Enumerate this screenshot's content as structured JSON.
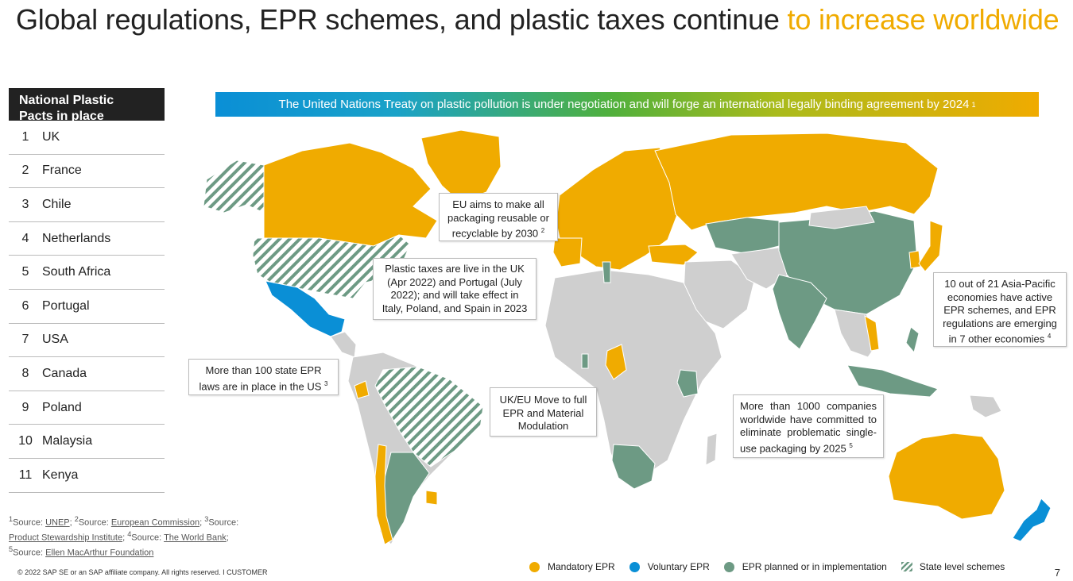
{
  "title": {
    "main": "Global regulations, EPR schemes, and plastic taxes continue ",
    "highlight": "to increase worldwide"
  },
  "pacts": {
    "header_line1": "National Plastic",
    "header_line2": "Pacts in place",
    "rows": [
      {
        "num": "1",
        "name": "UK"
      },
      {
        "num": "2",
        "name": "France"
      },
      {
        "num": "3",
        "name": "Chile"
      },
      {
        "num": "4",
        "name": "Netherlands"
      },
      {
        "num": "5",
        "name": "South Africa"
      },
      {
        "num": "6",
        "name": "Portugal"
      },
      {
        "num": "7",
        "name": "USA"
      },
      {
        "num": "8",
        "name": "Canada"
      },
      {
        "num": "9",
        "name": "Poland"
      },
      {
        "num": "10",
        "name": "Malaysia"
      },
      {
        "num": "11",
        "name": "Kenya"
      }
    ]
  },
  "banner": {
    "text": "The United Nations Treaty on plastic pollution is under negotiation and will forge an international legally binding agreement by 2024",
    "sup": "1"
  },
  "callouts": {
    "eu": {
      "text": "EU aims to make all packaging reusable or recyclable by 2030",
      "sup": "2"
    },
    "tax": {
      "text": "Plastic taxes are live in the UK (Apr 2022) and Portugal (July 2022); and will take effect in Italy, Poland, and Spain in 2023"
    },
    "us": {
      "text": "More than 100 state EPR laws are in place in the US",
      "sup": "3"
    },
    "ukeu": {
      "text": "UK/EU Move to full EPR and Material Modulation"
    },
    "companies": {
      "text": "More than 1000 companies worldwide have committed to eliminate problematic single-use packaging by 2025",
      "sup": "5"
    },
    "apac": {
      "text": "10 out of 21 Asia-Pacific economies have active EPR schemes, and EPR regulations are emerging in 7 other economies",
      "sup": "4"
    }
  },
  "sources": {
    "s1_sup": "1",
    "s1_label": "Source: ",
    "s1_link": "UNEP",
    "s2_sup": "2",
    "s2_label": "Source: ",
    "s2_link": "European Commission",
    "s3_sup": "3",
    "s3_label": "Source: ",
    "s3_link": "Product Stewardship Institute",
    "s4_sup": "4",
    "s4_label": "Source: ",
    "s4_link": "The World Bank",
    "s5_sup": "5",
    "s5_label": "Source: ",
    "s5_link": "Ellen MacArthur Foundation"
  },
  "legend": {
    "mandatory": "Mandatory EPR",
    "voluntary": "Voluntary EPR",
    "planned": "EPR planned or in implementation",
    "state": "State level schemes"
  },
  "footer": {
    "copyright": "© 2022 SAP SE or an SAP affiliate company. All rights reserved.  I   CUSTOMER",
    "page": "7"
  },
  "colors": {
    "mandatory": "#f0ab00",
    "voluntary": "#0a8fd6",
    "planned": "#6d9a84",
    "none": "#cfcfcf",
    "title_highlight": "#f0ab00"
  }
}
